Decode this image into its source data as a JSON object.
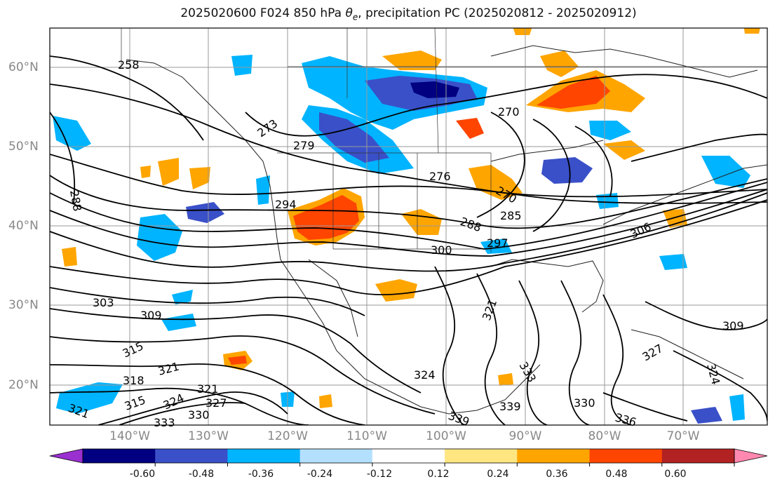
{
  "title": "2025020600 F024 850 hPa θe, precipitation PC (2025020812 - 2025020912)",
  "lon_labels": [
    "140°W",
    "130°W",
    "120°W",
    "110°W",
    "100°W",
    "90°W",
    "80°W",
    "70°W"
  ],
  "lat_labels": [
    "60°N",
    "50°N",
    "40°N",
    "30°N",
    "20°N"
  ],
  "contour_labels": [
    "258",
    "273",
    "270",
    "279",
    "276",
    "270",
    "288",
    "294",
    "288",
    "285",
    "300",
    "297",
    "306",
    "303",
    "309",
    "309",
    "315",
    "321",
    "318",
    "321",
    "321",
    "327",
    "315",
    "324",
    "330",
    "333",
    "324",
    "321",
    "333",
    "330",
    "339",
    "336",
    "339",
    "324",
    "327"
  ],
  "colorbar": {
    "ticks": [
      "-0.60",
      "-0.48",
      "-0.36",
      "-0.24",
      "-0.12",
      "0.12",
      "0.24",
      "0.36",
      "0.48",
      "0.60"
    ],
    "colors": [
      "#9b30d0",
      "#000080",
      "#3a50c8",
      "#00b4ff",
      "#b4e0ff",
      "#ffffff",
      "#ffe680",
      "#ffa500",
      "#ff4500",
      "#b22222",
      "#ff88b0"
    ]
  },
  "colors": {
    "pos_low": "#ffe680",
    "pos_mid": "#ffa500",
    "pos_high": "#ff4500",
    "pos_top": "#b22222",
    "neg_low": "#b4e0ff",
    "neg_mid": "#00b4ff",
    "neg_high": "#3a50c8",
    "neg_top": "#000080"
  }
}
